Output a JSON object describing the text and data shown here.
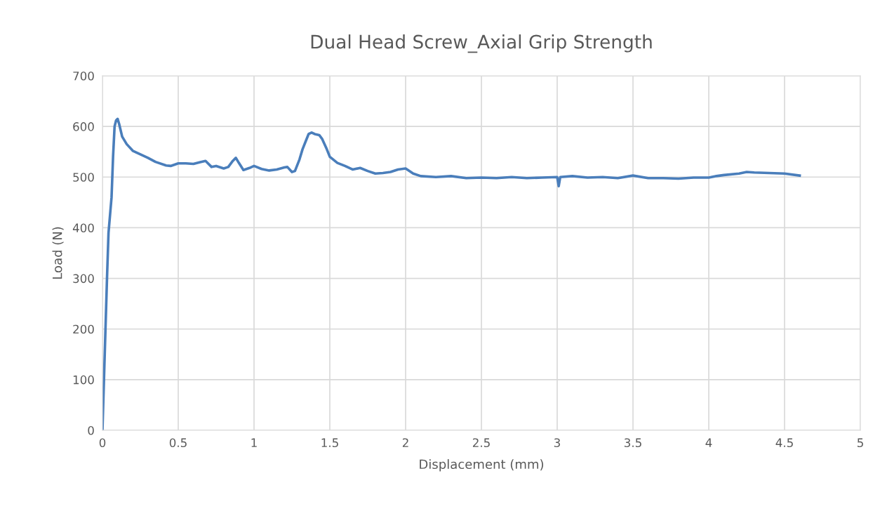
{
  "chart_data": {
    "type": "line",
    "title": "Dual Head Screw_Axial Grip Strength",
    "xlabel": "Displacement (mm)",
    "ylabel": "Load (N)",
    "series": [
      {
        "color": "#4a7ebb",
        "x": [
          0,
          0.01,
          0.02,
          0.03,
          0.04,
          0.06,
          0.07,
          0.08,
          0.09,
          0.1,
          0.11,
          0.13,
          0.16,
          0.2,
          0.25,
          0.3,
          0.35,
          0.42,
          0.45,
          0.5,
          0.55,
          0.6,
          0.65,
          0.68,
          0.72,
          0.75,
          0.8,
          0.83,
          0.86,
          0.88,
          0.9,
          0.93,
          0.97,
          1.0,
          1.05,
          1.1,
          1.15,
          1.2,
          1.22,
          1.25,
          1.27,
          1.3,
          1.32,
          1.34,
          1.36,
          1.38,
          1.4,
          1.43,
          1.45,
          1.48,
          1.5,
          1.55,
          1.6,
          1.65,
          1.7,
          1.75,
          1.8,
          1.85,
          1.9,
          1.95,
          2.0,
          2.05,
          2.1,
          2.2,
          2.3,
          2.4,
          2.5,
          2.6,
          2.7,
          2.8,
          2.9,
          3.0,
          3.01,
          3.02,
          3.1,
          3.2,
          3.3,
          3.4,
          3.5,
          3.6,
          3.7,
          3.8,
          3.9,
          4.0,
          4.05,
          4.1,
          4.2,
          4.25,
          4.3,
          4.4,
          4.5,
          4.6
        ],
        "values": [
          0,
          100,
          200,
          300,
          390,
          460,
          540,
          600,
          612,
          615,
          605,
          580,
          565,
          552,
          545,
          538,
          530,
          523,
          522,
          527,
          527,
          526,
          530,
          532,
          520,
          522,
          517,
          520,
          532,
          538,
          528,
          514,
          518,
          522,
          516,
          513,
          515,
          519,
          520,
          510,
          512,
          535,
          555,
          570,
          585,
          588,
          585,
          583,
          575,
          555,
          540,
          528,
          522,
          515,
          518,
          512,
          507,
          508,
          510,
          515,
          517,
          507,
          502,
          500,
          502,
          498,
          499,
          498,
          500,
          498,
          499,
          500,
          482,
          500,
          502,
          499,
          500,
          498,
          503,
          498,
          498,
          497,
          499,
          499,
          502,
          504,
          507,
          510,
          509,
          508,
          507,
          503
        ]
      }
    ],
    "xlim": [
      0,
      5
    ],
    "xticks": [
      0,
      0.5,
      1,
      1.5,
      2,
      2.5,
      3,
      3.5,
      4,
      4.5,
      5
    ],
    "ylim": [
      0,
      700
    ],
    "yticks": [
      0,
      100,
      200,
      300,
      400,
      500,
      600,
      700
    ],
    "grid": true,
    "marker": "none",
    "line_style": "solid",
    "legend": false
  }
}
